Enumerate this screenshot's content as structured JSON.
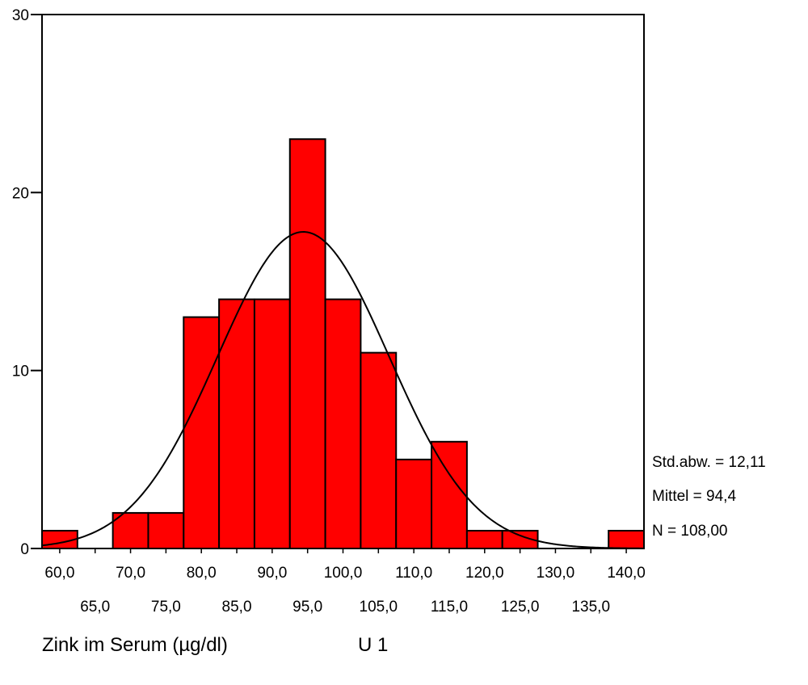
{
  "chart_data": {
    "type": "bar",
    "subtype": "histogram",
    "xlabel": "Zink im Serum (µg/dl)",
    "panel_label": "U 1",
    "ylabel": "",
    "bin_width": 5,
    "bins": [
      {
        "center": 60,
        "count": 1
      },
      {
        "center": 65,
        "count": 0
      },
      {
        "center": 70,
        "count": 2
      },
      {
        "center": 75,
        "count": 2
      },
      {
        "center": 80,
        "count": 13
      },
      {
        "center": 85,
        "count": 14
      },
      {
        "center": 90,
        "count": 14
      },
      {
        "center": 95,
        "count": 23
      },
      {
        "center": 100,
        "count": 14
      },
      {
        "center": 105,
        "count": 11
      },
      {
        "center": 110,
        "count": 5
      },
      {
        "center": 115,
        "count": 6
      },
      {
        "center": 120,
        "count": 1
      },
      {
        "center": 125,
        "count": 1
      },
      {
        "center": 130,
        "count": 0
      },
      {
        "center": 135,
        "count": 0
      },
      {
        "center": 140,
        "count": 1
      }
    ],
    "xlim": [
      57.5,
      142.5
    ],
    "ylim": [
      0,
      30
    ],
    "y_ticks": [
      0,
      10,
      20,
      30
    ],
    "x_tick_labels_upper": [
      "60,0",
      "70,0",
      "80,0",
      "90,0",
      "100,0",
      "110,0",
      "120,0",
      "130,0",
      "140,0"
    ],
    "x_tick_labels_lower": [
      "65,0",
      "75,0",
      "85,0",
      "95,0",
      "105,0",
      "115,0",
      "125,0",
      "135,0"
    ],
    "normal_curve": {
      "mean": 94.4,
      "std": 12.11,
      "n": 108
    },
    "stats": {
      "std_label": "Std.abw. = 12,11",
      "mean_label": "Mittel = 94,4",
      "n_label": "N = 108,00"
    },
    "bar_color": "#ff0000",
    "grid": false,
    "legend": "none"
  }
}
